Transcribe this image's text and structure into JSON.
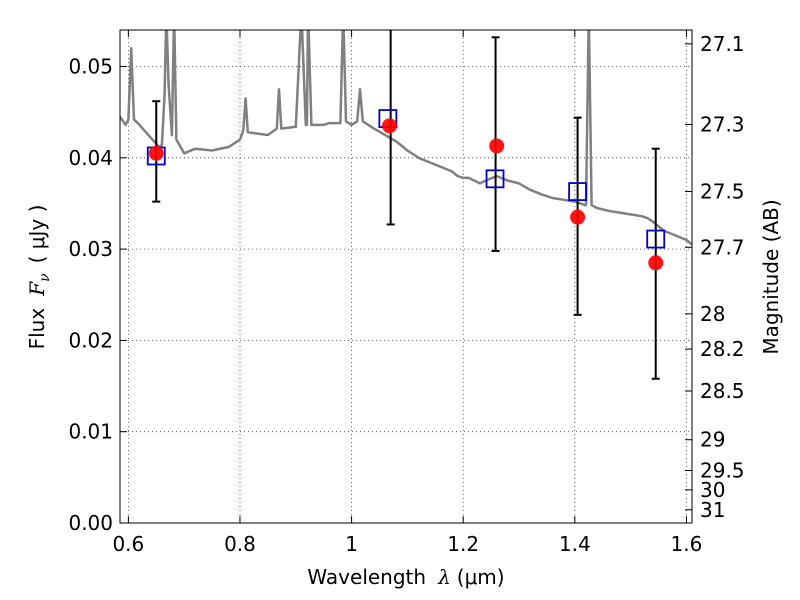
{
  "chart_data": {
    "type": "scatter",
    "title": "",
    "xlabel": {
      "text": "Wavelength",
      "symbol": "λ",
      "unit": "(μm)"
    },
    "ylabel": {
      "text": "Flux",
      "symbol": "F",
      "subscript": "ν",
      "unit": "( μJy )"
    },
    "y2label": "Magnitude (AB)",
    "xlim": [
      0.585,
      1.61
    ],
    "ylim": [
      0.0,
      0.054
    ],
    "xticks": [
      {
        "value": 0.6,
        "label": "0.6"
      },
      {
        "value": 0.8,
        "label": "0.8"
      },
      {
        "value": 1.0,
        "label": "1"
      },
      {
        "value": 1.2,
        "label": "1.2"
      },
      {
        "value": 1.4,
        "label": "1.4"
      },
      {
        "value": 1.6,
        "label": "1.6"
      }
    ],
    "yticks": [
      {
        "value": 0.0,
        "label": "0.00"
      },
      {
        "value": 0.01,
        "label": "0.01"
      },
      {
        "value": 0.02,
        "label": "0.02"
      },
      {
        "value": 0.03,
        "label": "0.03"
      },
      {
        "value": 0.04,
        "label": "0.04"
      },
      {
        "value": 0.05,
        "label": "0.05"
      }
    ],
    "y2ticks": [
      {
        "mag": 27.1,
        "label": "27.1"
      },
      {
        "mag": 27.3,
        "label": "27.3"
      },
      {
        "mag": 27.5,
        "label": "27.5"
      },
      {
        "mag": 27.7,
        "label": "27.7"
      },
      {
        "mag": 28.0,
        "label": "28"
      },
      {
        "mag": 28.2,
        "label": "28.2"
      },
      {
        "mag": 28.5,
        "label": "28.5"
      },
      {
        "mag": 29.0,
        "label": "29"
      },
      {
        "mag": 29.5,
        "label": "29.5"
      },
      {
        "mag": 30.0,
        "label": "30"
      },
      {
        "mag": 31.0,
        "label": "31"
      }
    ],
    "grid": true,
    "series": [
      {
        "kind": "line",
        "color": "#808080",
        "points": [
          [
            0.585,
            0.0445
          ],
          [
            0.595,
            0.0436
          ],
          [
            0.6,
            0.0442
          ],
          [
            0.605,
            0.052
          ],
          [
            0.61,
            0.0442
          ],
          [
            0.62,
            0.0436
          ],
          [
            0.64,
            0.0422
          ],
          [
            0.655,
            0.0412
          ],
          [
            0.66,
            0.0414
          ],
          [
            0.665,
            0.047
          ],
          [
            0.668,
            0.056
          ],
          [
            0.672,
            0.048
          ],
          [
            0.678,
            0.0425
          ],
          [
            0.682,
            0.056
          ],
          [
            0.686,
            0.042
          ],
          [
            0.7,
            0.0405
          ],
          [
            0.72,
            0.041
          ],
          [
            0.75,
            0.0408
          ],
          [
            0.78,
            0.0412
          ],
          [
            0.8,
            0.042
          ],
          [
            0.806,
            0.043
          ],
          [
            0.81,
            0.0465
          ],
          [
            0.814,
            0.0428
          ],
          [
            0.85,
            0.0425
          ],
          [
            0.866,
            0.0432
          ],
          [
            0.87,
            0.0475
          ],
          [
            0.874,
            0.0432
          ],
          [
            0.9,
            0.0434
          ],
          [
            0.91,
            0.056
          ],
          [
            0.918,
            0.0436
          ],
          [
            0.92,
            0.0436
          ],
          [
            0.922,
            0.056
          ],
          [
            0.928,
            0.0436
          ],
          [
            0.95,
            0.0436
          ],
          [
            0.96,
            0.0438
          ],
          [
            0.98,
            0.0438
          ],
          [
            0.985,
            0.056
          ],
          [
            0.99,
            0.044
          ],
          [
            1.0,
            0.0436
          ],
          [
            1.01,
            0.044
          ],
          [
            1.015,
            0.0475
          ],
          [
            1.02,
            0.044
          ],
          [
            1.04,
            0.0432
          ],
          [
            1.06,
            0.0425
          ],
          [
            1.08,
            0.0418
          ],
          [
            1.1,
            0.0408
          ],
          [
            1.12,
            0.04
          ],
          [
            1.14,
            0.0395
          ],
          [
            1.16,
            0.039
          ],
          [
            1.18,
            0.0385
          ],
          [
            1.19,
            0.038
          ],
          [
            1.2,
            0.0378
          ],
          [
            1.21,
            0.0378
          ],
          [
            1.22,
            0.0375
          ],
          [
            1.23,
            0.0372
          ],
          [
            1.24,
            0.0375
          ],
          [
            1.26,
            0.038
          ],
          [
            1.28,
            0.0375
          ],
          [
            1.3,
            0.0372
          ],
          [
            1.32,
            0.0365
          ],
          [
            1.34,
            0.036
          ],
          [
            1.36,
            0.0356
          ],
          [
            1.38,
            0.0354
          ],
          [
            1.4,
            0.0352
          ],
          [
            1.42,
            0.0348
          ],
          [
            1.425,
            0.056
          ],
          [
            1.43,
            0.0348
          ],
          [
            1.44,
            0.0345
          ],
          [
            1.46,
            0.0342
          ],
          [
            1.48,
            0.034
          ],
          [
            1.5,
            0.0338
          ],
          [
            1.52,
            0.0336
          ],
          [
            1.53,
            0.0334
          ],
          [
            1.54,
            0.033
          ],
          [
            1.56,
            0.032
          ],
          [
            1.58,
            0.0315
          ],
          [
            1.6,
            0.031
          ],
          [
            1.61,
            0.0305
          ]
        ]
      },
      {
        "kind": "errorbar",
        "color": "#000000",
        "points": [
          {
            "x": 0.65,
            "y": 0.0405,
            "ylow": 0.0352,
            "yhigh": 0.0462
          },
          {
            "x": 1.07,
            "y": 0.0435,
            "ylow": 0.0327,
            "yhigh": 0.055
          },
          {
            "x": 1.258,
            "y": 0.0413,
            "ylow": 0.0298,
            "yhigh": 0.0532
          },
          {
            "x": 1.405,
            "y": 0.0335,
            "ylow": 0.0228,
            "yhigh": 0.0444
          },
          {
            "x": 1.545,
            "y": 0.0285,
            "ylow": 0.0158,
            "yhigh": 0.041
          }
        ]
      },
      {
        "kind": "squares",
        "color": "#0000cc",
        "points": [
          [
            0.65,
            0.0402
          ],
          [
            1.065,
            0.0443
          ],
          [
            1.257,
            0.0377
          ],
          [
            1.405,
            0.0363
          ],
          [
            1.545,
            0.0311
          ]
        ]
      },
      {
        "kind": "circles",
        "color": "#ff0000",
        "points": [
          [
            0.65,
            0.0405
          ],
          [
            1.068,
            0.0435
          ],
          [
            1.26,
            0.0413
          ],
          [
            1.405,
            0.0335
          ],
          [
            1.545,
            0.0285
          ]
        ]
      }
    ]
  }
}
